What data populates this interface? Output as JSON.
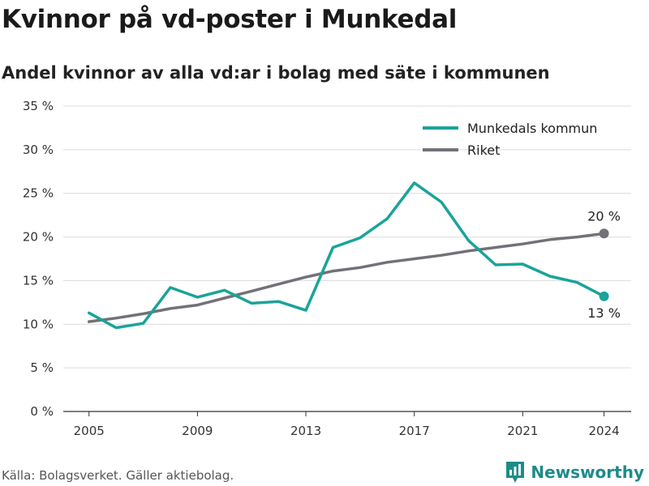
{
  "page": {
    "title": "Kvinnor på vd-poster i Munkedal",
    "subtitle": "Andel kvinnor av alla vd:ar i bolag med säte i kommunen",
    "source": "Källa: Bolagsverket. Gäller aktiebolag.",
    "brand": "Newsworthy",
    "brand_icon": "bar-chart-logo-icon",
    "colors": {
      "munkedal": "#1aa39a",
      "riket": "#747078",
      "brand": "#1f8a8a"
    }
  },
  "chart_data": {
    "type": "line",
    "x": [
      2005,
      2006,
      2007,
      2008,
      2009,
      2010,
      2011,
      2012,
      2013,
      2014,
      2015,
      2016,
      2017,
      2018,
      2019,
      2020,
      2021,
      2022,
      2023,
      2024
    ],
    "x_ticks": [
      2005,
      2009,
      2013,
      2017,
      2021,
      2024
    ],
    "y_ticks": [
      0,
      5,
      10,
      15,
      20,
      25,
      30,
      35
    ],
    "y_tick_labels": [
      "0 %",
      "5 %",
      "10 %",
      "15 %",
      "20 %",
      "25 %",
      "30 %",
      "35 %"
    ],
    "ylim": [
      0,
      35
    ],
    "xlim": [
      2004.05,
      2025
    ],
    "grid": true,
    "legend_position": "top-right",
    "series": [
      {
        "name": "Munkedals kommun",
        "color": "#1aa39a",
        "values": [
          11.3,
          9.6,
          10.1,
          14.2,
          13.1,
          13.9,
          12.4,
          12.6,
          11.6,
          18.8,
          19.9,
          22.1,
          26.2,
          24.0,
          19.6,
          16.8,
          16.9,
          15.5,
          14.8,
          13.2
        ],
        "end_label": "13 %"
      },
      {
        "name": "Riket",
        "color": "#747078",
        "values": [
          10.3,
          10.7,
          11.2,
          11.8,
          12.2,
          13.0,
          13.8,
          14.6,
          15.4,
          16.1,
          16.5,
          17.1,
          17.5,
          17.9,
          18.4,
          18.8,
          19.2,
          19.7,
          20.0,
          20.4
        ],
        "end_label": "20 %"
      }
    ]
  }
}
